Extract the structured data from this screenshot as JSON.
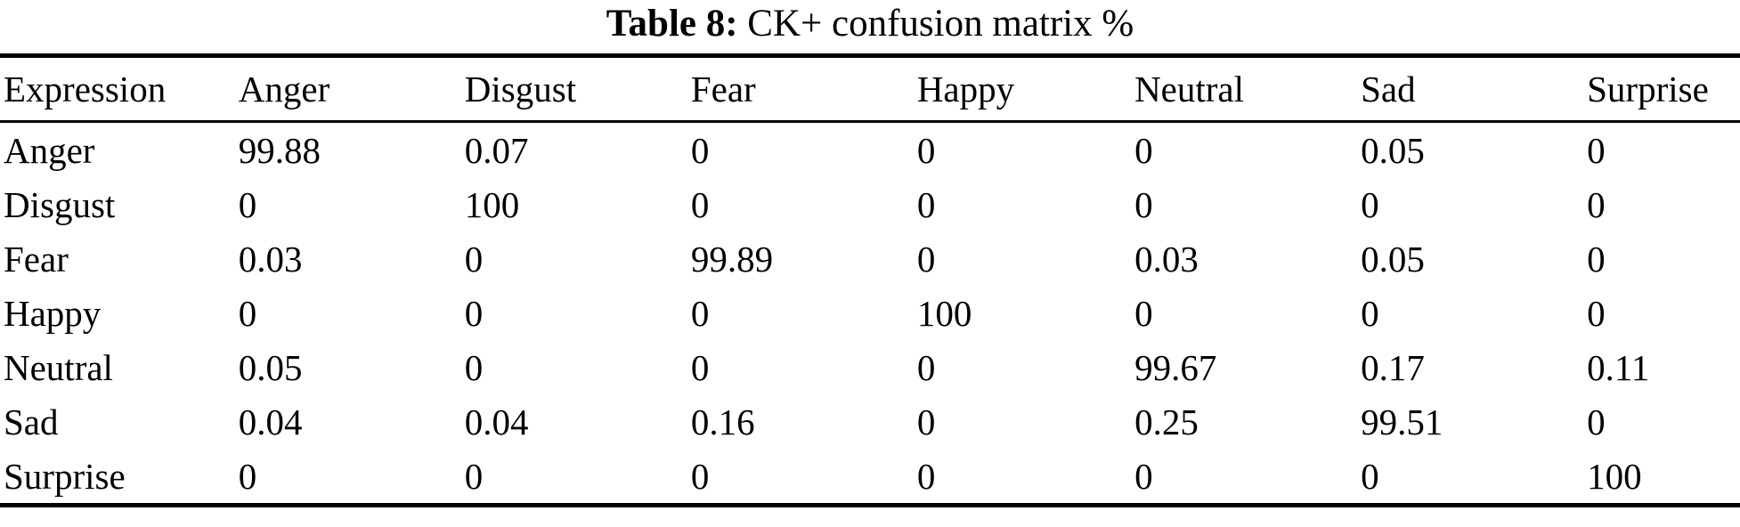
{
  "caption": {
    "label": "Table 8:",
    "text": "CK+ confusion matrix %"
  },
  "colors": {
    "text": "#000000",
    "background": "#ffffff",
    "rule": "#000000"
  },
  "chart_data": {
    "type": "table",
    "title": "Table 8: CK+ confusion matrix %",
    "unit": "%",
    "columns": [
      "Expression",
      "Anger",
      "Disgust",
      "Fear",
      "Happy",
      "Neutral",
      "Sad",
      "Surprise"
    ],
    "rows": [
      [
        "Anger",
        "99.88",
        "0.07",
        "0",
        "0",
        "0",
        "0.05",
        "0"
      ],
      [
        "Disgust",
        "0",
        "100",
        "0",
        "0",
        "0",
        "0",
        "0"
      ],
      [
        "Fear",
        "0.03",
        "0",
        "99.89",
        "0",
        "0.03",
        "0.05",
        "0"
      ],
      [
        "Happy",
        "0",
        "0",
        "0",
        "100",
        "0",
        "0",
        "0"
      ],
      [
        "Neutral",
        "0.05",
        "0",
        "0",
        "0",
        "99.67",
        "0.17",
        "0.11"
      ],
      [
        "Sad",
        "0.04",
        "0.04",
        "0.16",
        "0",
        "0.25",
        "99.51",
        "0"
      ],
      [
        "Surprise",
        "0",
        "0",
        "0",
        "0",
        "0",
        "0",
        "100"
      ]
    ]
  }
}
